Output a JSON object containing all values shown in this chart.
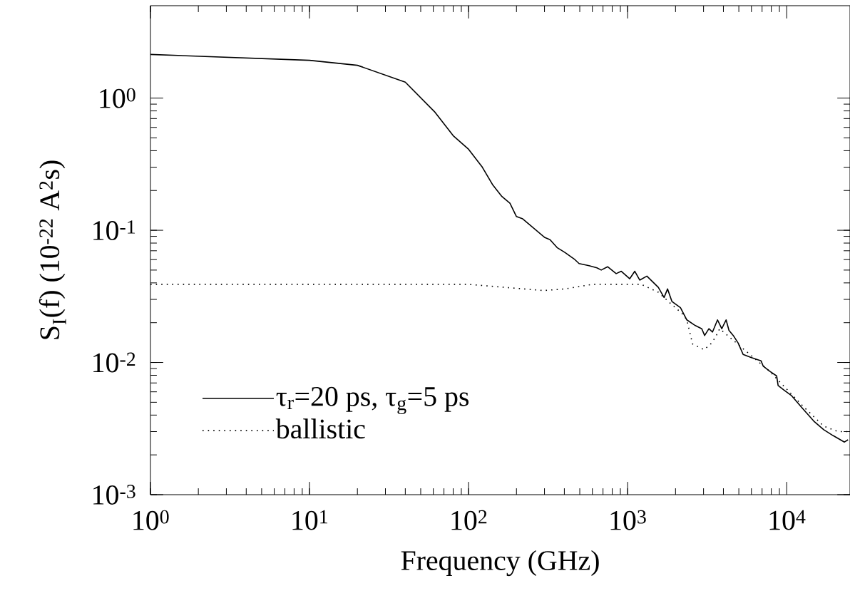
{
  "chart_data": {
    "type": "line",
    "xlabel": "Frequency (GHz)",
    "ylabel": "S$_{I}$(f) (10$^{-22}$ A$^{2}$s)",
    "log": "xy",
    "grid": false,
    "legend": "bottom left",
    "marker": "none",
    "xlim": [
      1,
      25000
    ],
    "ylim": [
      0.001,
      5
    ],
    "xticks": [
      {
        "value": 1,
        "label": "10$^{0}$"
      },
      {
        "value": 10,
        "label": "10$^{1}$"
      },
      {
        "value": 100,
        "label": "10$^{2}$"
      },
      {
        "value": 1000,
        "label": "10$^{3}$"
      },
      {
        "value": 10000,
        "label": "10$^{4}$"
      }
    ],
    "yticks": [
      {
        "value": 0.001,
        "label": "10$^{-3}$"
      },
      {
        "value": 0.01,
        "label": "10$^{-2}$"
      },
      {
        "value": 0.1,
        "label": "10$^{-1}$"
      },
      {
        "value": 1,
        "label": "10$^{0}$"
      }
    ],
    "series": [
      {
        "name": "τ$_{r}$=20 ps, τ$_{g}$=5 ps",
        "color": "#000000",
        "line_style": "solid",
        "x": [
          1,
          10,
          20,
          40,
          61,
          80,
          100,
          122,
          142,
          162,
          182,
          200,
          219,
          302,
          325,
          360,
          403,
          466,
          495,
          572,
          641,
          682,
          748,
          847,
          912,
          1031,
          1109,
          1191,
          1321,
          1559,
          1694,
          1782,
          1897,
          2148,
          2355,
          2667,
          2924,
          3048,
          3243,
          3417,
          3673,
          3907,
          4159,
          4335,
          4613,
          4955,
          5321,
          5966,
          6897,
          7112,
          7798,
          8650,
          8831,
          9594,
          10740,
          12550,
          14800,
          17100,
          19550,
          23060,
          24300
        ],
        "values": [
          2.14,
          1.93,
          1.77,
          1.32,
          0.79,
          0.52,
          0.41,
          0.3,
          0.22,
          0.18,
          0.16,
          0.127,
          0.122,
          0.088,
          0.085,
          0.074,
          0.068,
          0.06,
          0.056,
          0.054,
          0.052,
          0.05,
          0.053,
          0.047,
          0.049,
          0.043,
          0.049,
          0.042,
          0.045,
          0.037,
          0.031,
          0.036,
          0.029,
          0.026,
          0.021,
          0.019,
          0.018,
          0.016,
          0.018,
          0.017,
          0.021,
          0.018,
          0.021,
          0.0175,
          0.016,
          0.014,
          0.0115,
          0.0109,
          0.0103,
          0.0094,
          0.0086,
          0.0079,
          0.0067,
          0.0062,
          0.0056,
          0.0045,
          0.0036,
          0.0031,
          0.0028,
          0.0025,
          0.0026
        ]
      },
      {
        "name": "ballistic",
        "color": "#000000",
        "line_style": "dotted",
        "x": [
          1,
          10,
          100,
          296,
          403,
          597,
          788,
          1217,
          1559,
          1858,
          2239,
          2355,
          2560,
          3020,
          3311,
          3565,
          3788,
          7798,
          12820,
          17100,
          21040,
          25000
        ],
        "values": [
          0.039,
          0.039,
          0.039,
          0.035,
          0.036,
          0.039,
          0.039,
          0.039,
          0.034,
          0.028,
          0.023,
          0.021,
          0.0138,
          0.0125,
          0.0137,
          0.0155,
          0.018,
          0.0086,
          0.0046,
          0.0033,
          0.003,
          0.003
        ]
      }
    ]
  }
}
